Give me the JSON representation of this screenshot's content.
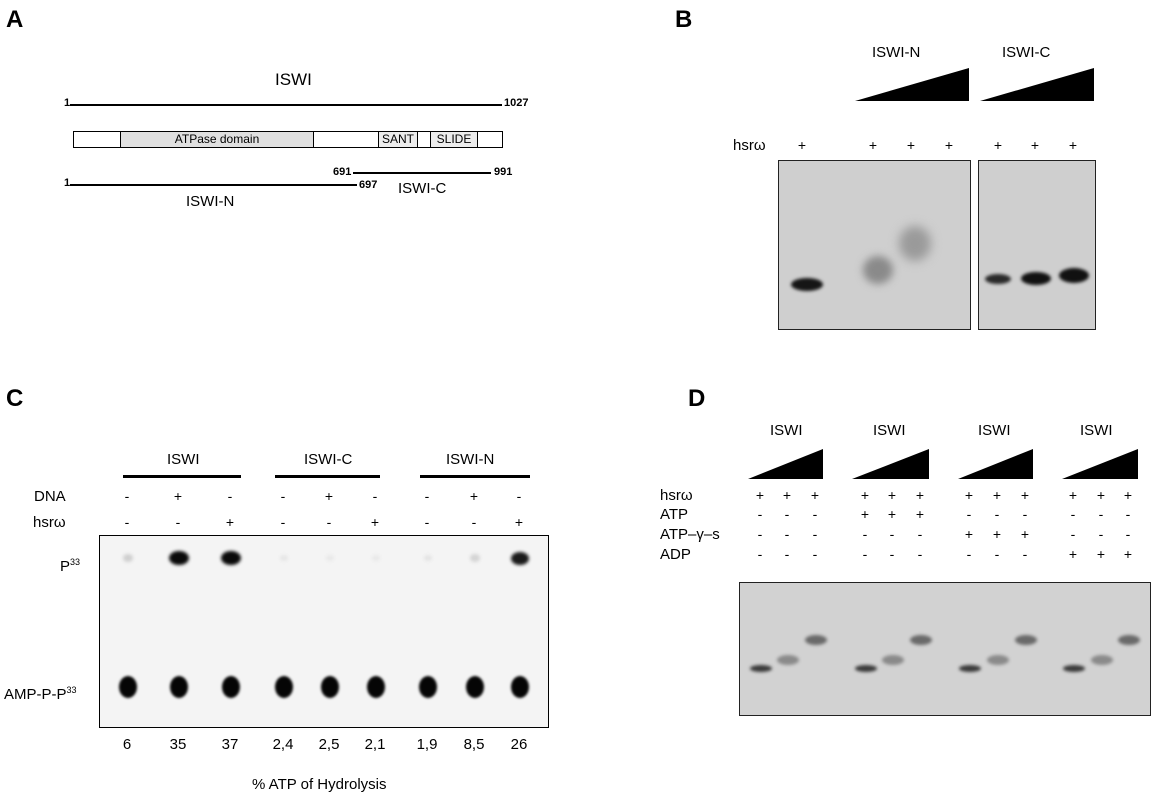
{
  "panel_a": {
    "letter": "A",
    "protein_name": "ISWI",
    "full_start": "1",
    "full_end": "1027",
    "domains": [
      "ATPase domain",
      "SANT",
      "SLIDE"
    ],
    "n_fragment": {
      "name": "ISWI-N",
      "start": "1",
      "end": "697"
    },
    "c_fragment": {
      "name": "ISWI-C",
      "start": "691",
      "end": "991"
    }
  },
  "panel_b": {
    "letter": "B",
    "groups": [
      "ISWI-N",
      "ISWI-C"
    ],
    "row_label": "hsrω",
    "lane_marks": [
      "+",
      "+",
      "+",
      "+",
      "+",
      "+",
      "+"
    ]
  },
  "panel_c": {
    "letter": "C",
    "groups": [
      "ISWI",
      "ISWI-C",
      "ISWI-N"
    ],
    "rows": [
      {
        "label": "DNA",
        "marks": [
          "-",
          "+",
          "-",
          "-",
          "+",
          "-",
          "-",
          "+",
          "-"
        ]
      },
      {
        "label": "hsrω",
        "marks": [
          "-",
          "-",
          "+",
          "-",
          "-",
          "+",
          "-",
          "-",
          "+"
        ]
      }
    ],
    "spot_labels": {
      "top_base": "P",
      "top_sup": "33",
      "bottom_base": "AMP-P-P",
      "bottom_sup": "33"
    },
    "hydrolysis_values": [
      "6",
      "35",
      "37",
      "2,4",
      "2,5",
      "2,1",
      "1,9",
      "8,5",
      "26"
    ],
    "x_caption": "% ATP of Hydrolysis"
  },
  "panel_d": {
    "letter": "D",
    "groups": [
      "ISWI",
      "ISWI",
      "ISWI",
      "ISWI"
    ],
    "rows": [
      {
        "label": "hsrω",
        "marks": [
          "+",
          "+",
          "+",
          "+",
          "+",
          "+",
          "+",
          "+",
          "+",
          "+",
          "+",
          "+"
        ]
      },
      {
        "label": "ATP",
        "marks": [
          "-",
          "-",
          "-",
          "+",
          "+",
          "+",
          "-",
          "-",
          "-",
          "-",
          "-",
          "-"
        ]
      },
      {
        "label": "ATP–γ–s",
        "marks": [
          "-",
          "-",
          "-",
          "-",
          "-",
          "-",
          "+",
          "+",
          "+",
          "-",
          "-",
          "-"
        ]
      },
      {
        "label": "ADP",
        "marks": [
          "-",
          "-",
          "-",
          "-",
          "-",
          "-",
          "-",
          "-",
          "-",
          "+",
          "+",
          "+"
        ]
      }
    ]
  }
}
